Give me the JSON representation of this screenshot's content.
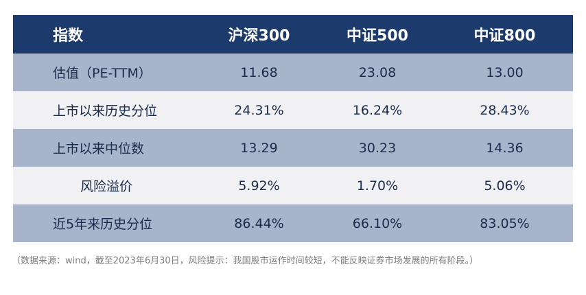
{
  "table": {
    "headers": [
      "指数",
      "沪深300",
      "中证500",
      "中证800"
    ],
    "rows": [
      {
        "label": "估值（PE-TTM）",
        "values": [
          "11.68",
          "23.08",
          "13.00"
        ]
      },
      {
        "label": "上市以来历史分位",
        "values": [
          "24.31%",
          "16.24%",
          "28.43%"
        ]
      },
      {
        "label": "上市以来中位数",
        "values": [
          "13.29",
          "30.23",
          "14.36"
        ]
      },
      {
        "label": "风险溢价",
        "values": [
          "5.92%",
          "1.70%",
          "5.06%"
        ]
      },
      {
        "label": "近5年来历史分位",
        "values": [
          "86.44%",
          "66.10%",
          "83.05%"
        ]
      }
    ]
  },
  "source_note": "（数据来源：wind，截至2023年6月30日，风险提示：我国股市运作时间较短，不能反映证券市场发展的所有阶段。）",
  "colors": {
    "header_bg": "#1c3a6b",
    "row_dark": "#a8b4c9",
    "row_light": "#f1f1f3",
    "text": "#1a2c4c"
  }
}
